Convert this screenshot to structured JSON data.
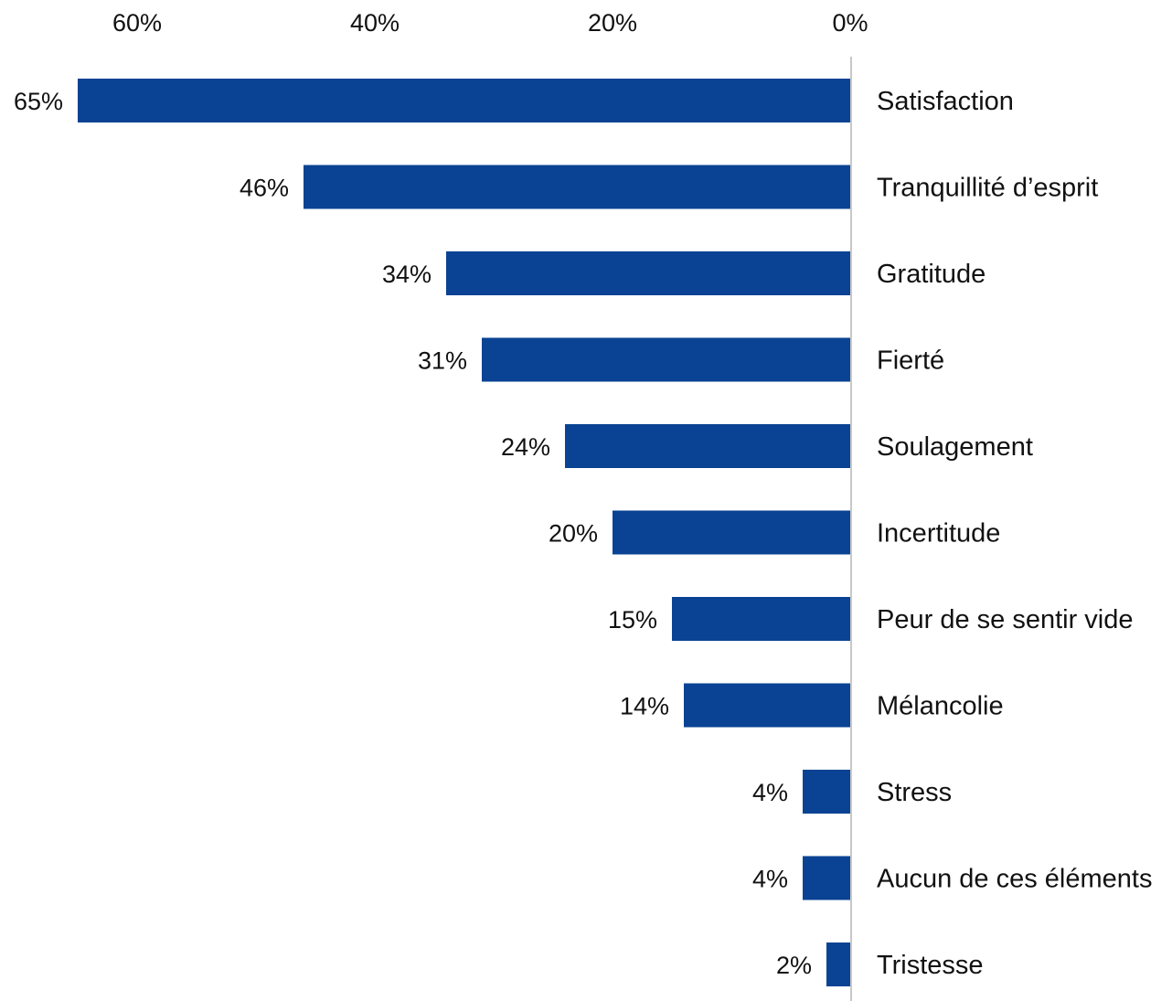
{
  "chart_data": {
    "type": "bar",
    "orientation": "horizontal-reversed",
    "categories": [
      "Satisfaction",
      "Tranquillité d’esprit",
      "Gratitude",
      "Fierté",
      "Soulagement",
      "Incertitude",
      "Peur de se sentir vide",
      "Mélancolie",
      "Stress",
      "Aucun de ces éléments",
      "Tristesse"
    ],
    "values": [
      65,
      46,
      34,
      31,
      24,
      20,
      15,
      14,
      4,
      4,
      2
    ],
    "value_labels": [
      "65%",
      "46%",
      "34%",
      "31%",
      "24%",
      "20%",
      "15%",
      "14%",
      "4%",
      "4%",
      "2%"
    ],
    "xticks": [
      60,
      40,
      20,
      0
    ],
    "xtick_labels": [
      "60%",
      "40%",
      "20%",
      "0%"
    ],
    "xlim": [
      0,
      65
    ],
    "axis_position": "top",
    "category_labels_side": "right",
    "grid": false,
    "title": "",
    "xlabel": "",
    "ylabel": "",
    "colors": {
      "bar": "#0a4393",
      "axis_line": "#c8c8c8",
      "text": "#111111"
    }
  }
}
